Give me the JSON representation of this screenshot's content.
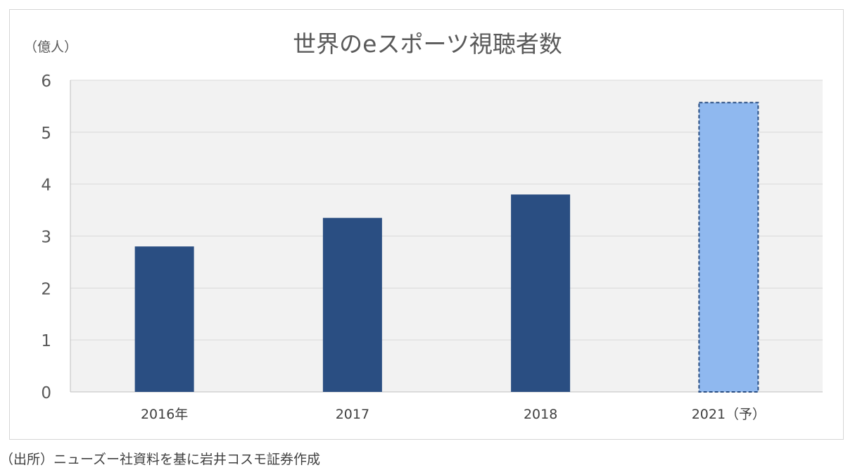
{
  "chart_data": {
    "type": "bar",
    "title": "世界のeスポーツ視聴者数",
    "unit_label": "（億人）",
    "categories": [
      "2016年",
      "2017",
      "2018",
      "2021（予）"
    ],
    "values": [
      2.8,
      3.35,
      3.8,
      5.57
    ],
    "forecast": [
      false,
      false,
      false,
      true
    ],
    "ylim": [
      0,
      6
    ],
    "yticks": [
      "0",
      "1",
      "2",
      "3",
      "4",
      "5",
      "6"
    ],
    "grid": true,
    "colors": {
      "actual": "#2a4e82",
      "forecast": "#8fb8ef",
      "forecast_border": "#2a4e82",
      "plot_bg": "#f2f2f2",
      "grid": "#d9d9d9"
    }
  },
  "source": "（出所）ニューズー社資料を基に岩井コスモ証券作成"
}
